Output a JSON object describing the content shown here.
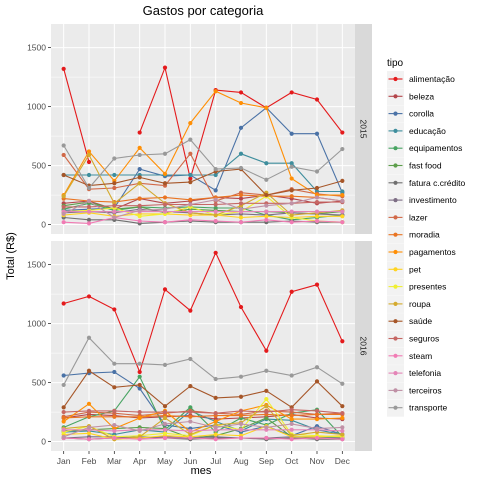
{
  "chart_data": {
    "type": "line",
    "title": "Gastos por categoria",
    "xlabel": "mes",
    "ylabel": "Total (R$)",
    "ylim": [
      -80,
      1700
    ],
    "yticks": [
      0,
      500,
      1000,
      1500
    ],
    "categories": [
      "Jan",
      "Feb",
      "Mar",
      "Apr",
      "May",
      "Jun",
      "Jul",
      "Aug",
      "Sep",
      "Oct",
      "Nov",
      "Dec"
    ],
    "legend_title": "tipo",
    "legend_position": "right",
    "grid": true,
    "panels": [
      {
        "facet": "2015",
        "series": [
          {
            "name": "alimentação",
            "color": "#E41A1C",
            "values": [
              1320,
              530,
              null,
              780,
              1330,
              390,
              1140,
              1120,
              990,
              1120,
              1060,
              780
            ]
          },
          {
            "name": "beleza",
            "color": "#B4464B",
            "values": [
              180,
              200,
              130,
              220,
              180,
              200,
              230,
              220,
              250,
              220,
              180,
              200
            ]
          },
          {
            "name": "corolla",
            "color": "#4A72A6",
            "values": [
              120,
              130,
              140,
              470,
              410,
              420,
              290,
              820,
              990,
              770,
              770,
              270
            ]
          },
          {
            "name": "educação",
            "color": "#3E8E9D",
            "values": [
              420,
              420,
              420,
              420,
              420,
              420,
              420,
              600,
              520,
              520,
              280,
              280
            ]
          },
          {
            "name": "equipamentos",
            "color": "#48A462",
            "values": [
              130,
              180,
              120,
              150,
              140,
              150,
              140,
              140,
              80,
              40,
              60,
              80
            ]
          },
          {
            "name": "fast food",
            "color": "#5D9E4B",
            "values": [
              160,
              190,
              130,
              150,
              100,
              130,
              120,
              110,
              110,
              100,
              90,
              110
            ]
          },
          {
            "name": "fatura c.crédito",
            "color": "#6F6F6F",
            "values": [
              60,
              40,
              40,
              10,
              20,
              30,
              20,
              20,
              20,
              30,
              20,
              20
            ]
          },
          {
            "name": "investimento",
            "color": "#7E6E85",
            "values": [
              100,
              110,
              100,
              130,
              110,
              100,
              80,
              90,
              80,
              100,
              90,
              80
            ]
          },
          {
            "name": "lazer",
            "color": "#D16948",
            "values": [
              590,
              300,
              310,
              350,
              330,
              600,
              200,
              270,
              250,
              300,
              260,
              240
            ]
          },
          {
            "name": "moradia",
            "color": "#E97422",
            "values": [
              220,
              200,
              190,
              220,
              230,
              210,
              230,
              250,
              240,
              240,
              230,
              200
            ]
          },
          {
            "name": "pagamentos",
            "color": "#FF8F05",
            "values": [
              250,
              620,
              370,
              650,
              430,
              860,
              1130,
              1030,
              990,
              390,
              250,
              250
            ]
          },
          {
            "name": "pet",
            "color": "#FFD422",
            "values": [
              80,
              100,
              70,
              90,
              90,
              80,
              80,
              60,
              70,
              60,
              70,
              70
            ]
          },
          {
            "name": "presentes",
            "color": "#F0F032",
            "values": [
              110,
              120,
              140,
              70,
              90,
              150,
              80,
              110,
              240,
              60,
              30,
              20
            ]
          },
          {
            "name": "roupa",
            "color": "#D4AA2E",
            "values": [
              240,
              590,
              180,
              350,
              180,
              100,
              80,
              160,
              270,
              80,
              100,
              120
            ]
          },
          {
            "name": "saúde",
            "color": "#A65628",
            "values": [
              420,
              330,
              350,
              400,
              350,
              360,
              450,
              470,
              250,
              290,
              310,
              370
            ]
          },
          {
            "name": "seguros",
            "color": "#C66764",
            "values": [
              150,
              150,
              160,
              160,
              170,
              170,
              170,
              180,
              180,
              180,
              190,
              190
            ]
          },
          {
            "name": "steam",
            "color": "#F17BB4",
            "values": [
              20,
              10,
              60,
              30,
              20,
              40,
              30,
              20,
              40,
              20,
              30,
              20
            ]
          },
          {
            "name": "telefonia",
            "color": "#E485B7",
            "values": [
              110,
              110,
              110,
              110,
              110,
              110,
              110,
              110,
              110,
              110,
              110,
              110
            ]
          },
          {
            "name": "terceiros",
            "color": "#C091A6",
            "values": [
              90,
              200,
              60,
              120,
              130,
              170,
              210,
              130,
              160,
              180,
              230,
              200
            ]
          },
          {
            "name": "transporte",
            "color": "#999999",
            "values": [
              670,
              310,
              560,
              590,
              600,
              720,
              470,
              480,
              380,
              490,
              450,
              640
            ]
          }
        ]
      },
      {
        "facet": "2016",
        "series": [
          {
            "name": "alimentação",
            "color": "#E41A1C",
            "values": [
              1170,
              1230,
              1120,
              590,
              1290,
              1110,
              1600,
              1140,
              770,
              1270,
              1330,
              850
            ]
          },
          {
            "name": "beleza",
            "color": "#B4464B",
            "values": [
              200,
              230,
              220,
              200,
              210,
              220,
              190,
              200,
              210,
              230,
              200,
              190
            ]
          },
          {
            "name": "corolla",
            "color": "#4A72A6",
            "values": [
              560,
              580,
              590,
              450,
              140,
              110,
              140,
              80,
              130,
              50,
              130,
              60
            ]
          },
          {
            "name": "educação",
            "color": "#3E8E9D",
            "values": [
              80,
              90,
              60,
              100,
              80,
              260,
              170,
              90,
              190,
              180,
              100,
              60
            ]
          },
          {
            "name": "equipamentos",
            "color": "#48A462",
            "values": [
              120,
              210,
              260,
              550,
              100,
              290,
              80,
              200,
              140,
              240,
              270,
              40
            ]
          },
          {
            "name": "fast food",
            "color": "#5D9E4B",
            "values": [
              90,
              100,
              110,
              120,
              110,
              30,
              50,
              110,
              200,
              40,
              40,
              40
            ]
          },
          {
            "name": "fatura c.crédito",
            "color": "#6F6F6F",
            "values": [
              30,
              20,
              30,
              40,
              30,
              20,
              30,
              30,
              20,
              30,
              20,
              20
            ]
          },
          {
            "name": "investimento",
            "color": "#7E6E85",
            "values": [
              30,
              40,
              40,
              30,
              40,
              30,
              40,
              30,
              30,
              40,
              30,
              30
            ]
          },
          {
            "name": "lazer",
            "color": "#D16948",
            "values": [
              210,
              250,
              240,
              220,
              240,
              260,
              240,
              230,
              260,
              250,
              230,
              240
            ]
          },
          {
            "name": "moradia",
            "color": "#E97422",
            "values": [
              200,
              210,
              210,
              210,
              220,
              210,
              220,
              220,
              230,
              220,
              230,
              230
            ]
          },
          {
            "name": "pagamentos",
            "color": "#FF8F05",
            "values": [
              170,
              320,
              110,
              200,
              260,
              80,
              170,
              260,
              310,
              190,
              190,
              200
            ]
          },
          {
            "name": "pet",
            "color": "#FFD422",
            "values": [
              60,
              70,
              20,
              30,
              50,
              40,
              60,
              50,
              130,
              40,
              40,
              50
            ]
          },
          {
            "name": "presentes",
            "color": "#F0F032",
            "values": [
              80,
              130,
              40,
              50,
              70,
              50,
              140,
              100,
              360,
              60,
              50,
              40
            ]
          },
          {
            "name": "roupa",
            "color": "#D4AA2E",
            "values": [
              110,
              130,
              20,
              40,
              200,
              60,
              140,
              160,
              300,
              50,
              80,
              60
            ]
          },
          {
            "name": "saúde",
            "color": "#A65628",
            "values": [
              290,
              600,
              460,
              480,
              300,
              470,
              370,
              380,
              430,
              290,
              510,
              300
            ]
          },
          {
            "name": "seguros",
            "color": "#C66764",
            "values": [
              250,
              260,
              260,
              250,
              250,
              250,
              240,
              260,
              250,
              270,
              260,
              240
            ]
          },
          {
            "name": "steam",
            "color": "#F17BB4",
            "values": [
              30,
              20,
              30,
              20,
              30,
              30,
              20,
              30,
              30,
              20,
              30,
              20
            ]
          },
          {
            "name": "telefonia",
            "color": "#E485B7",
            "values": [
              100,
              100,
              90,
              100,
              100,
              90,
              100,
              100,
              100,
              100,
              100,
              90
            ]
          },
          {
            "name": "terceiros",
            "color": "#C091A6",
            "values": [
              40,
              120,
              140,
              90,
              150,
              170,
              120,
              150,
              120,
              150,
              110,
              120
            ]
          },
          {
            "name": "transporte",
            "color": "#999999",
            "values": [
              480,
              880,
              660,
              660,
              650,
              700,
              530,
              550,
              600,
              560,
              630,
              490
            ]
          }
        ]
      }
    ]
  }
}
